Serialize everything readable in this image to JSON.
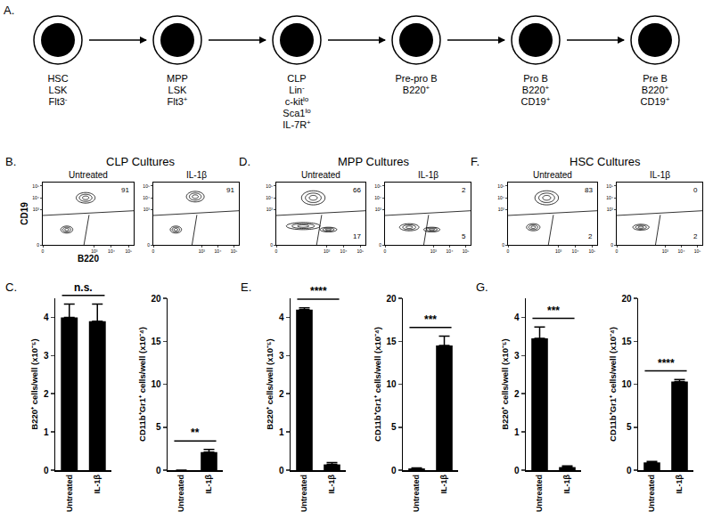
{
  "diagram": {
    "panel": "A.",
    "nodes": [
      {
        "name": "HSC",
        "lines": [
          {
            "text": "LSK"
          },
          {
            "text": "Flt3",
            "sup": "-"
          }
        ]
      },
      {
        "name": "MPP",
        "lines": [
          {
            "text": "LSK"
          },
          {
            "text": "Flt3",
            "sup": "+"
          }
        ]
      },
      {
        "name": "CLP",
        "lines": [
          {
            "text": "Lin",
            "sup": "-"
          },
          {
            "text": "c-kit",
            "sup": "lo"
          },
          {
            "text": "Sca1",
            "sup": "lo"
          },
          {
            "text": "IL-7R",
            "sup": "+"
          }
        ]
      },
      {
        "name": "Pre-pro B",
        "lines": [
          {
            "text": "B220",
            "sup": "+"
          }
        ]
      },
      {
        "name": "Pro B",
        "lines": [
          {
            "text": "B220",
            "sup": "+"
          },
          {
            "text": "CD19",
            "sup": "+"
          }
        ]
      },
      {
        "name": "Pre B",
        "lines": [
          {
            "text": "B220",
            "sup": "+"
          },
          {
            "text": "CD19",
            "sup": "+"
          }
        ]
      }
    ]
  },
  "chart_data": [
    {
      "type": "contour",
      "panel": "B.",
      "group_title": "CLP Cultures",
      "title": "Untreated",
      "xlabel": "B220",
      "ylabel": "CD19",
      "xlim": [
        0,
        5.3
      ],
      "ylim": [
        0,
        5.3
      ],
      "xticks": [
        0,
        {
          "value": 3,
          "label": "10³"
        },
        {
          "value": 4,
          "label": "10⁴"
        },
        {
          "value": 5,
          "label": "10⁵"
        }
      ],
      "yticks": [
        0,
        {
          "value": 3,
          "label": "10³"
        },
        {
          "value": 4,
          "label": "10⁴"
        },
        {
          "value": 5,
          "label": "10⁵"
        }
      ],
      "populations": [
        {
          "x": 2.5,
          "y": 4.0,
          "x_spread": 0.55,
          "y_spread": 0.45
        },
        {
          "x": 1.4,
          "y": 1.3,
          "x_spread": 0.35,
          "y_spread": 0.3
        }
      ],
      "gate_lines": [
        {
          "x": [
            0,
            5.3
          ],
          "y": [
            2.5,
            2.9
          ]
        },
        {
          "x": [
            2.4,
            2.7
          ],
          "y": [
            0,
            2.55
          ]
        }
      ],
      "gate_values": {
        "upper": 91
      }
    },
    {
      "type": "contour",
      "title": "IL-1β",
      "xlim": [
        0,
        5.3
      ],
      "ylim": [
        0,
        5.3
      ],
      "xticks": [
        0,
        {
          "value": 3,
          "label": "10³"
        },
        {
          "value": 4,
          "label": "10⁴"
        },
        {
          "value": 5,
          "label": "10⁵"
        }
      ],
      "yticks": [
        0,
        {
          "value": 3,
          "label": "10³"
        },
        {
          "value": 4,
          "label": "10⁴"
        },
        {
          "value": 5,
          "label": "10⁵"
        }
      ],
      "populations": [
        {
          "x": 2.6,
          "y": 4.1,
          "x_spread": 0.55,
          "y_spread": 0.45
        },
        {
          "x": 1.4,
          "y": 1.3,
          "x_spread": 0.35,
          "y_spread": 0.3
        }
      ],
      "gate_lines": [
        {
          "x": [
            0,
            5.3
          ],
          "y": [
            2.5,
            2.9
          ]
        },
        {
          "x": [
            2.4,
            2.7
          ],
          "y": [
            0,
            2.55
          ]
        }
      ],
      "gate_values": {
        "upper": 91
      }
    },
    {
      "type": "contour",
      "panel": "D.",
      "group_title": "MPP Cultures",
      "title": "Untreated",
      "xlim": [
        0,
        5.3
      ],
      "ylim": [
        0,
        5.3
      ],
      "xticks": [
        0,
        {
          "value": 3,
          "label": "10³"
        },
        {
          "value": 4,
          "label": "10⁴"
        },
        {
          "value": 5,
          "label": "10⁵"
        }
      ],
      "yticks": [
        0,
        {
          "value": 3,
          "label": "10³"
        },
        {
          "value": 4,
          "label": "10⁴"
        },
        {
          "value": 5,
          "label": "10⁵"
        }
      ],
      "populations": [
        {
          "x": 2.2,
          "y": 4.0,
          "x_spread": 0.7,
          "y_spread": 0.6
        },
        {
          "x": 1.6,
          "y": 1.6,
          "x_spread": 1.0,
          "y_spread": 0.3
        },
        {
          "x": 3.1,
          "y": 1.3,
          "x_spread": 0.5,
          "y_spread": 0.2
        }
      ],
      "gate_lines": [
        {
          "x": [
            0,
            5.3
          ],
          "y": [
            2.5,
            2.9
          ]
        },
        {
          "x": [
            2.4,
            2.7
          ],
          "y": [
            0,
            2.55
          ]
        }
      ],
      "gate_values": {
        "upper": 66,
        "lower": 17
      }
    },
    {
      "type": "contour",
      "title": "IL-1β",
      "xlim": [
        0,
        5.3
      ],
      "ylim": [
        0,
        5.3
      ],
      "xticks": [
        0,
        {
          "value": 3,
          "label": "10³"
        },
        {
          "value": 4,
          "label": "10⁴"
        },
        {
          "value": 5,
          "label": "10⁵"
        }
      ],
      "yticks": [
        0,
        {
          "value": 3,
          "label": "10³"
        },
        {
          "value": 4,
          "label": "10⁴"
        },
        {
          "value": 5,
          "label": "10⁵"
        }
      ],
      "populations": [
        {
          "x": 1.5,
          "y": 1.5,
          "x_spread": 0.6,
          "y_spread": 0.3
        },
        {
          "x": 2.9,
          "y": 1.3,
          "x_spread": 0.5,
          "y_spread": 0.2
        }
      ],
      "gate_lines": [
        {
          "x": [
            0,
            5.3
          ],
          "y": [
            2.5,
            2.9
          ]
        },
        {
          "x": [
            2.4,
            2.7
          ],
          "y": [
            0,
            2.55
          ]
        }
      ],
      "gate_values": {
        "upper": 2,
        "lower": 5
      }
    },
    {
      "type": "contour",
      "panel": "F.",
      "group_title": "HSC Cultures",
      "title": "Untreated",
      "xlim": [
        0,
        5.3
      ],
      "ylim": [
        0,
        5.3
      ],
      "xticks": [
        0,
        {
          "value": 3,
          "label": "10³"
        },
        {
          "value": 4,
          "label": "10⁴"
        },
        {
          "value": 5,
          "label": "10⁵"
        }
      ],
      "yticks": [
        0,
        {
          "value": 3,
          "label": "10³"
        },
        {
          "value": 4,
          "label": "10⁴"
        },
        {
          "value": 5,
          "label": "10⁵"
        }
      ],
      "populations": [
        {
          "x": 2.3,
          "y": 4.0,
          "x_spread": 0.7,
          "y_spread": 0.6
        },
        {
          "x": 1.5,
          "y": 1.5,
          "x_spread": 0.4,
          "y_spread": 0.3
        }
      ],
      "gate_lines": [
        {
          "x": [
            0,
            5.3
          ],
          "y": [
            2.5,
            2.9
          ]
        },
        {
          "x": [
            2.4,
            2.7
          ],
          "y": [
            0,
            2.55
          ]
        }
      ],
      "gate_values": {
        "upper": 83,
        "lower": 2
      }
    },
    {
      "type": "contour",
      "title": "IL-1β",
      "xlim": [
        0,
        5.3
      ],
      "ylim": [
        0,
        5.3
      ],
      "xticks": [
        0,
        {
          "value": 3,
          "label": "10³"
        },
        {
          "value": 4,
          "label": "10⁴"
        },
        {
          "value": 5,
          "label": "10⁵"
        }
      ],
      "yticks": [
        0,
        {
          "value": 3,
          "label": "10³"
        },
        {
          "value": 4,
          "label": "10⁴"
        },
        {
          "value": 5,
          "label": "10⁵"
        }
      ],
      "populations": [
        {
          "x": 1.5,
          "y": 1.5,
          "x_spread": 0.5,
          "y_spread": 0.25
        }
      ],
      "gate_lines": [
        {
          "x": [
            0,
            5.3
          ],
          "y": [
            2.5,
            2.9
          ]
        },
        {
          "x": [
            2.4,
            2.7
          ],
          "y": [
            0,
            2.55
          ]
        }
      ],
      "gate_values": {
        "upper": 0,
        "lower": 2
      }
    },
    {
      "type": "bar",
      "panel": "C.",
      "categories": [
        "Untreated",
        "IL-1β"
      ],
      "values": [
        4.0,
        3.9
      ],
      "errors": [
        0.35,
        0.45
      ],
      "color": "#000000",
      "ylabel": "B220⁺ cells/well (x10⁻⁵)",
      "ylim": [
        0,
        4.5
      ],
      "yticks": [
        0,
        1,
        2,
        3,
        4
      ],
      "significance": "n.s."
    },
    {
      "type": "bar",
      "categories": [
        "Untreated",
        "IL-1β"
      ],
      "values": [
        0,
        2.1
      ],
      "errors": [
        0,
        0.3
      ],
      "color": "#000000",
      "ylabel": "CD11b⁺Gr1⁺ cells/well (x10⁻⁴)",
      "ylim": [
        0,
        20
      ],
      "yticks": [
        0,
        5,
        10,
        15,
        20
      ],
      "significance": "**"
    },
    {
      "type": "bar",
      "panel": "E.",
      "categories": [
        "Untreated",
        "IL-1β"
      ],
      "values": [
        4.2,
        0.15
      ],
      "errors": [
        0.05,
        0.05
      ],
      "color": "#000000",
      "ylabel": "B220⁺ cells/well (x10⁻⁵)",
      "ylim": [
        0,
        4.5
      ],
      "yticks": [
        0,
        1,
        2,
        3,
        4
      ],
      "significance": "****"
    },
    {
      "type": "bar",
      "categories": [
        "Untreated",
        "IL-1β"
      ],
      "values": [
        0.2,
        14.5
      ],
      "errors": [
        0.05,
        1.1
      ],
      "color": "#000000",
      "ylabel": "CD11b⁺Gr1⁺ cells/well (x10⁻⁴)",
      "ylim": [
        0,
        20
      ],
      "yticks": [
        0,
        5,
        10,
        15,
        20
      ],
      "significance": "***"
    },
    {
      "type": "bar",
      "panel": "G.",
      "categories": [
        "Untreated",
        "IL-1β"
      ],
      "values": [
        3.45,
        0.08
      ],
      "errors": [
        0.3,
        0.03
      ],
      "color": "#000000",
      "ylabel": "B220⁺ cells/well (x10⁻⁵)",
      "ylim": [
        0,
        4.5
      ],
      "yticks": [
        0,
        1,
        2,
        3,
        4
      ],
      "significance": "***"
    },
    {
      "type": "bar",
      "categories": [
        "Untreated",
        "IL-1β"
      ],
      "values": [
        0.9,
        10.3
      ],
      "errors": [
        0.1,
        0.25
      ],
      "color": "#000000",
      "ylabel": "CD11b⁺Gr1⁺ cells/well (x10⁻⁴)",
      "ylim": [
        0,
        20
      ],
      "yticks": [
        0,
        5,
        10,
        15,
        20
      ],
      "significance": "****"
    }
  ]
}
